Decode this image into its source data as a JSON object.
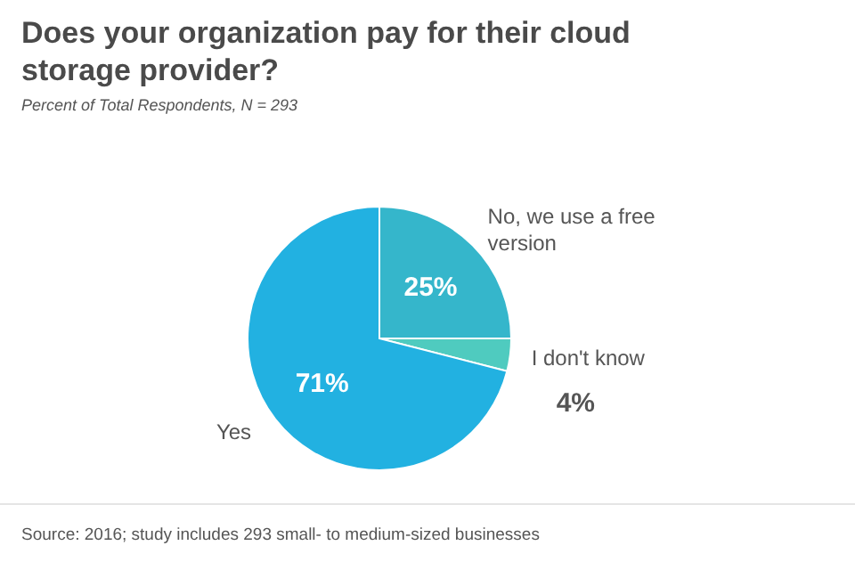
{
  "chart_data": {
    "type": "pie",
    "title": "Does your organization pay for their cloud storage provider?",
    "subtitle": "Percent of Total Respondents, N = 293",
    "categories": [
      "No, we use a free version",
      "I don't know",
      "Yes"
    ],
    "values": [
      25,
      4,
      71
    ],
    "colors": [
      "#35b6cb",
      "#4fcbbf",
      "#22b1e1"
    ],
    "value_labels": [
      "25%",
      "4%",
      "71%"
    ],
    "annotations": [
      "Source: 2016; study includes 293 small- to medium-sized businesses"
    ]
  }
}
